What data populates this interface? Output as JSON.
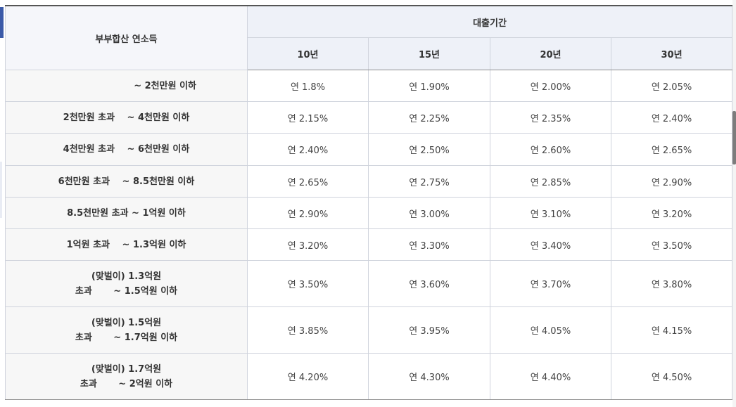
{
  "table": {
    "income_header": "부부합산 연소득",
    "period_header": "대출기간",
    "period_columns": [
      "10년",
      "15년",
      "20년",
      "30년"
    ],
    "rows": [
      {
        "range": [
          "~ 2천만원 이하"
        ],
        "rates": [
          "연 1.8%",
          "연 1.90%",
          "연 2.00%",
          "연 2.05%"
        ]
      },
      {
        "range": [
          "2천만원 초과 　~ 4천만원 이하"
        ],
        "rates": [
          "연 2.15%",
          "연 2.25%",
          "연 2.35%",
          "연 2.40%"
        ]
      },
      {
        "range": [
          "4천만원 초과 　~ 6천만원 이하"
        ],
        "rates": [
          "연 2.40%",
          "연 2.50%",
          "연 2.60%",
          "연 2.65%"
        ]
      },
      {
        "range": [
          "6천만원 초과 　~ 8.5천만원 이하"
        ],
        "rates": [
          "연 2.65%",
          "연 2.75%",
          "연 2.85%",
          "연 2.90%"
        ]
      },
      {
        "range": [
          "8.5천만원 초과 ~ 1억원 이하"
        ],
        "rates": [
          "연 2.90%",
          "연 3.00%",
          "연 3.10%",
          "연 3.20%"
        ]
      },
      {
        "range": [
          "1억원 초과 　~ 1.3억원 이하"
        ],
        "rates": [
          "연 3.20%",
          "연 3.30%",
          "연 3.40%",
          "연 3.50%"
        ]
      },
      {
        "range": [
          "(맞벌이) 1.3억원",
          "초과 　　~ 1.5억원 이하"
        ],
        "rates": [
          "연 3.50%",
          "연 3.60%",
          "연 3.70%",
          "연 3.80%"
        ]
      },
      {
        "range": [
          "(맞벌이) 1.5억원",
          "초과 　　~ 1.7억원 이하"
        ],
        "rates": [
          "연 3.85%",
          "연 3.95%",
          "연 4.05%",
          "연 4.15%"
        ]
      },
      {
        "range": [
          "(맞벌이) 1.7억원",
          "초과 　　~ 2억원 이하"
        ],
        "rates": [
          "연 4.20%",
          "연 4.30%",
          "연 4.40%",
          "연 4.50%"
        ]
      }
    ]
  }
}
